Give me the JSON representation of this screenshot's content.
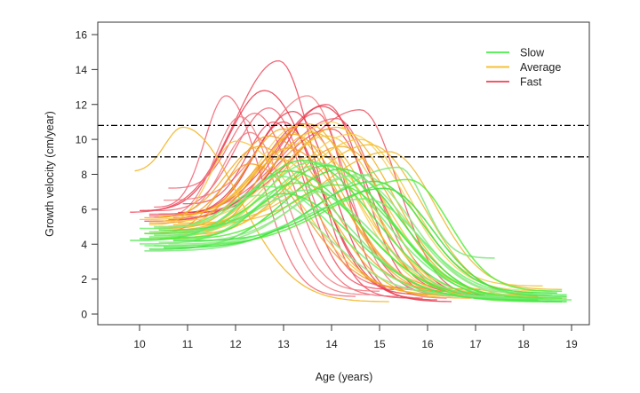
{
  "chart_data": {
    "type": "line",
    "title": "",
    "xlabel": "Age (years)",
    "ylabel": "Growth velocity (cm/year)",
    "xlim": [
      9.3,
      19.3
    ],
    "ylim": [
      -0.7,
      16.6
    ],
    "xticks": [
      10,
      11,
      12,
      13,
      14,
      15,
      16,
      17,
      18,
      19
    ],
    "yticks": [
      0,
      2,
      4,
      6,
      8,
      10,
      12,
      14,
      16
    ],
    "grid": false,
    "legend": {
      "position": "top-right",
      "entries": [
        {
          "name": "Slow",
          "color": "#5ef05e"
        },
        {
          "name": "Average",
          "color": "#f5c033"
        },
        {
          "name": "Fast",
          "color": "#ef5a6a"
        }
      ]
    },
    "reference_lines": [
      {
        "y": 10.8,
        "style": "dot-dash",
        "color": "#000000"
      },
      {
        "y": 9.0,
        "style": "dot-dash",
        "color": "#000000"
      }
    ],
    "group_colors": {
      "slow": [
        "#4de84d",
        "#6cf26c",
        "#3fe03f",
        "#7be87b",
        "#58ec3c",
        "#8fe884"
      ],
      "average": [
        "#f2b21c",
        "#f5c43a",
        "#f0a820",
        "#f7cf55",
        "#eeb62a",
        "#f29a28"
      ],
      "fast": [
        "#ee4a5e",
        "#f06373",
        "#e83a4c",
        "#f07a80",
        "#ec5460"
      ]
    },
    "series_note": "Each curve: [startAge, startVel, peakAge, peakVel, endAge, endVel]",
    "series": {
      "fast": [
        [
          9.8,
          5.8,
          12.9,
          14.5,
          15.6,
          0.9
        ],
        [
          10.3,
          6.1,
          11.8,
          12.5,
          14.5,
          1.0
        ],
        [
          10.0,
          5.9,
          12.6,
          12.8,
          16.5,
          0.7
        ],
        [
          10.5,
          6.5,
          13.5,
          12.5,
          16.4,
          0.9
        ],
        [
          10.2,
          5.6,
          14.6,
          11.7,
          17.5,
          1.0
        ],
        [
          10.4,
          5.7,
          13.9,
          12.0,
          16.7,
          1.0
        ],
        [
          10.6,
          7.2,
          12.4,
          11.5,
          15.4,
          1.0
        ],
        [
          10.5,
          5.6,
          13.2,
          11.6,
          16.2,
          0.8
        ],
        [
          10.3,
          5.5,
          12.1,
          11.3,
          14.8,
          1.1
        ],
        [
          10.7,
          5.5,
          13.7,
          11.5,
          15.9,
          0.9
        ],
        [
          10.9,
          6.3,
          12.8,
          11.0,
          15.3,
          1.4
        ],
        [
          10.2,
          5.7,
          14.1,
          11.2,
          17.2,
          1.1
        ],
        [
          10.8,
          5.8,
          13.0,
          11.0,
          16.0,
          1.1
        ],
        [
          10.4,
          5.6,
          12.3,
          10.4,
          15.0,
          1.3
        ],
        [
          10.6,
          5.4,
          13.4,
          10.9,
          16.8,
          1.0
        ],
        [
          10.1,
          5.3,
          14.0,
          10.6,
          17.0,
          1.2
        ],
        [
          10.3,
          5.9,
          12.7,
          11.8,
          15.6,
          1.5
        ],
        [
          11.1,
          5.8,
          13.8,
          11.9,
          17.8,
          0.9
        ]
      ],
      "average": [
        [
          9.9,
          8.1,
          10.9,
          10.7,
          15.2,
          0.7
        ],
        [
          10.2,
          5.1,
          12.0,
          9.9,
          17.0,
          1.0
        ],
        [
          10.3,
          4.9,
          13.0,
          10.6,
          17.3,
          1.0
        ],
        [
          10.4,
          5.0,
          13.3,
          10.8,
          17.6,
          0.9
        ],
        [
          10.5,
          4.8,
          13.6,
          10.4,
          18.0,
          0.8
        ],
        [
          10.2,
          5.3,
          12.7,
          10.2,
          17.2,
          1.2
        ],
        [
          10.6,
          5.0,
          14.1,
          10.7,
          18.5,
          0.9
        ],
        [
          10.3,
          4.7,
          13.9,
          10.2,
          18.2,
          1.2
        ],
        [
          10.1,
          5.5,
          12.5,
          9.6,
          16.6,
          1.1
        ],
        [
          10.4,
          4.6,
          14.4,
          10.3,
          18.6,
          1.3
        ],
        [
          10.7,
          5.1,
          15.2,
          9.3,
          18.8,
          1.4
        ],
        [
          10.2,
          5.2,
          13.1,
          9.5,
          17.5,
          1.0
        ],
        [
          10.5,
          4.9,
          12.9,
          8.9,
          16.9,
          0.9
        ],
        [
          10.0,
          5.4,
          13.4,
          9.8,
          17.8,
          1.1
        ],
        [
          10.6,
          4.5,
          14.2,
          9.6,
          18.3,
          1.0
        ],
        [
          10.3,
          4.4,
          13.7,
          9.1,
          18.0,
          1.1
        ],
        [
          10.8,
          5.2,
          14.8,
          9.7,
          18.9,
          0.9
        ],
        [
          10.1,
          4.6,
          12.3,
          8.6,
          16.5,
          1.3
        ],
        [
          10.4,
          5.6,
          13.5,
          10.9,
          17.4,
          1.2
        ],
        [
          10.2,
          4.3,
          14.6,
          10.0,
          18.4,
          1.6
        ],
        [
          10.9,
          4.7,
          13.2,
          10.3,
          17.1,
          1.4
        ],
        [
          10.5,
          5.3,
          14.0,
          11.0,
          17.7,
          0.8
        ]
      ],
      "slow": [
        [
          9.8,
          4.2,
          13.4,
          8.8,
          18.8,
          0.7
        ],
        [
          10.0,
          4.0,
          13.8,
          8.6,
          19.0,
          0.8
        ],
        [
          10.2,
          3.7,
          14.2,
          8.3,
          18.9,
          0.7
        ],
        [
          10.1,
          3.6,
          15.4,
          8.4,
          17.4,
          3.2
        ],
        [
          10.3,
          3.9,
          15.6,
          7.7,
          18.8,
          1.3
        ],
        [
          10.4,
          4.1,
          14.6,
          8.0,
          18.6,
          1.1
        ],
        [
          10.0,
          4.3,
          13.1,
          8.2,
          18.4,
          0.9
        ],
        [
          10.2,
          4.4,
          13.6,
          8.7,
          18.9,
          0.8
        ],
        [
          10.5,
          3.8,
          14.9,
          7.6,
          18.7,
          1.2
        ],
        [
          10.3,
          4.5,
          12.9,
          7.9,
          18.2,
          0.8
        ],
        [
          10.1,
          4.6,
          13.3,
          7.5,
          18.5,
          0.7
        ],
        [
          10.6,
          4.0,
          14.4,
          7.9,
          18.9,
          0.9
        ],
        [
          10.4,
          4.8,
          13.9,
          8.5,
          18.8,
          0.7
        ],
        [
          10.0,
          4.9,
          12.7,
          7.3,
          17.9,
          0.9
        ],
        [
          10.7,
          4.2,
          15.1,
          7.2,
          18.9,
          1.0
        ],
        [
          10.2,
          4.7,
          13.5,
          7.1,
          18.6,
          0.8
        ],
        [
          10.5,
          4.3,
          14.1,
          7.4,
          18.8,
          0.9
        ],
        [
          10.3,
          5.0,
          12.5,
          6.8,
          17.6,
          1.0
        ],
        [
          10.8,
          4.4,
          13.0,
          6.9,
          18.3,
          0.8
        ],
        [
          10.1,
          3.9,
          14.7,
          6.6,
          18.9,
          1.1
        ]
      ]
    }
  }
}
